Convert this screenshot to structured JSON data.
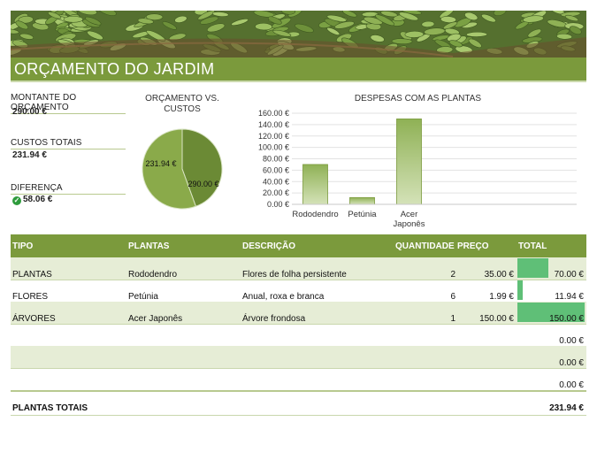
{
  "header": {
    "title": "ORÇAMENTO DO JARDIM"
  },
  "summary": {
    "budget_label": "MONTANTE DO ORÇAMENTO",
    "budget_value": "290.00 €",
    "costs_label": "CUSTOS TOTAIS",
    "costs_value": "231.94 €",
    "diff_label": "DIFERENÇA",
    "diff_value": "58.06 €",
    "diff_icon": "check-circle-icon"
  },
  "chart_data": [
    {
      "type": "pie",
      "title": "ORÇAMENTO VS. CUSTOS",
      "labels": [
        "231.94 €",
        "290.00 €"
      ],
      "values": [
        231.94,
        290.0
      ],
      "colors": [
        "#8aaa4a",
        "#6b8a35"
      ]
    },
    {
      "type": "bar",
      "title": "DESPESAS COM AS PLANTAS",
      "categories": [
        "Rododendro",
        "Petúnia",
        "Acer Japonês"
      ],
      "values": [
        70.0,
        11.94,
        150.0
      ],
      "ylim": [
        0,
        160
      ],
      "yticks": [
        "0.00 €",
        "20.00 €",
        "40.00 €",
        "60.00 €",
        "80.00 €",
        "100.00 €",
        "120.00 €",
        "140.00 €",
        "160.00 €"
      ],
      "grid": true
    }
  ],
  "table": {
    "headers": [
      "TIPO",
      "PLANTAS",
      "DESCRIÇÃO",
      "QUANTIDADE",
      "PREÇO",
      "TOTAL"
    ],
    "rows": [
      {
        "tipo": "PLANTAS",
        "planta": "Rododendro",
        "descricao": "Flores de folha persistente",
        "qtd": "2",
        "preco": "35.00 €",
        "total": "70.00 €",
        "total_value": 70.0
      },
      {
        "tipo": "FLORES",
        "planta": "Petúnia",
        "descricao": "Anual, roxa e branca",
        "qtd": "6",
        "preco": "1.99 €",
        "total": "11.94 €",
        "total_value": 11.94
      },
      {
        "tipo": "ÁRVORES",
        "planta": "Acer Japonês",
        "descricao": "Árvore frondosa",
        "qtd": "1",
        "preco": "150.00 €",
        "total": "150.00 €",
        "total_value": 150.0
      },
      {
        "tipo": "",
        "planta": "",
        "descricao": "",
        "qtd": "",
        "preco": "",
        "total": "0.00 €",
        "total_value": 0
      },
      {
        "tipo": "",
        "planta": "",
        "descricao": "",
        "qtd": "",
        "preco": "",
        "total": "0.00 €",
        "total_value": 0
      },
      {
        "tipo": "",
        "planta": "",
        "descricao": "",
        "qtd": "",
        "preco": "",
        "total": "0.00 €",
        "total_value": 0
      }
    ],
    "total_label": "PLANTAS TOTAIS",
    "total_value": "231.94 €"
  },
  "colors": {
    "accent": "#7b9a3c",
    "alt_row": "#e6edd6",
    "databar": "#5fbf77"
  }
}
